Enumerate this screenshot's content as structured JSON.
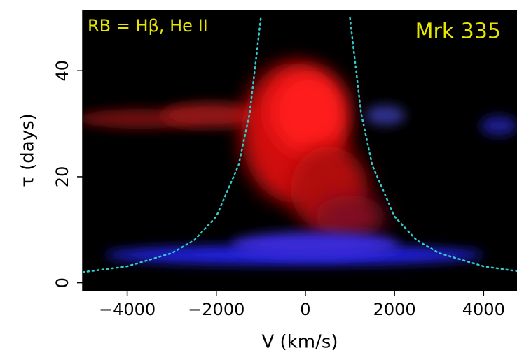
{
  "chart_data": {
    "type": "line",
    "title": "Mrk 335",
    "annotation": "RB = Hβ, He II",
    "x_label": "V (km/s)",
    "y_label": "τ (days)",
    "xlim": [
      -5000,
      4750
    ],
    "ylim": [
      -1.5,
      51.5
    ],
    "xticks": [
      {
        "value": -4000,
        "label": "−4000"
      },
      {
        "value": -2000,
        "label": "−2000"
      },
      0,
      2000,
      4000
    ],
    "yticks": [
      0,
      20,
      40
    ],
    "line_style": "dotted",
    "curves": [
      {
        "color": "#33cccc",
        "x": [
          -5000,
          -4000,
          -3000,
          -2500,
          -2000,
          -1500,
          -1250,
          -1000
        ],
        "y": [
          2,
          3.1,
          5.6,
          8,
          12.5,
          22.2,
          32,
          50
        ]
      },
      {
        "color": "#33cccc",
        "x": [
          1000,
          1250,
          1500,
          2000,
          2500,
          3000,
          4000,
          4750
        ],
        "y": [
          50,
          32,
          22.2,
          12.5,
          8,
          5.6,
          3.1,
          2.2
        ]
      }
    ]
  }
}
